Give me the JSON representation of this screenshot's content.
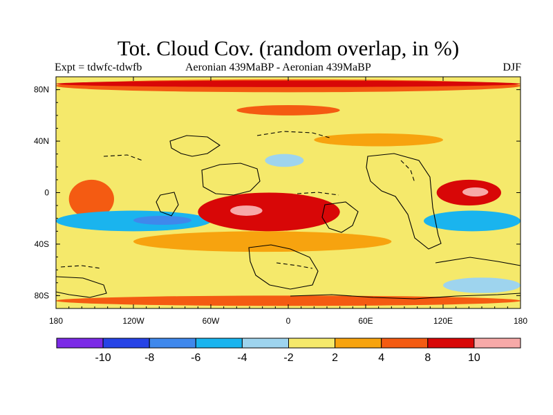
{
  "chart_data": {
    "type": "heatmap",
    "title": "Tot. Cloud Cov. (random overlap, in %)",
    "left_label": "Expt = tdwfc-tdwfb",
    "center_label": "Aeronian 439MaBP - Aeronian 439MaBP",
    "right_label": "DJF",
    "variable": "Total cloud cover difference (random overlap)",
    "units": "%",
    "season": "DJF",
    "xlim": [
      -180,
      180
    ],
    "ylim": [
      -90,
      90
    ],
    "x_ticks": [
      {
        "value": -180,
        "label": "180"
      },
      {
        "value": -120,
        "label": "120W"
      },
      {
        "value": -60,
        "label": "60W"
      },
      {
        "value": 0,
        "label": "0"
      },
      {
        "value": 60,
        "label": "60E"
      },
      {
        "value": 120,
        "label": "120E"
      },
      {
        "value": 180,
        "label": "180"
      }
    ],
    "y_ticks": [
      {
        "value": 80,
        "label": "80N"
      },
      {
        "value": 40,
        "label": "40N"
      },
      {
        "value": 0,
        "label": "0"
      },
      {
        "value": -40,
        "label": "40S"
      },
      {
        "value": -80,
        "label": "80S"
      }
    ],
    "contour_levels": [
      "-10",
      "-8",
      "-6",
      "-4",
      "-2",
      "2",
      "4",
      "8",
      "10"
    ],
    "colorbar_colors": [
      "#7b2ae6",
      "#2643e6",
      "#3f88ec",
      "#1ab4ee",
      "#9ed4ee",
      "#f5e96b",
      "#f7a30f",
      "#f45b12",
      "#d80707",
      "#f7a9a8"
    ],
    "background_class_color": "#f5e96b",
    "regions": [
      {
        "name": "northern high-latitude band",
        "lon": [
          -180,
          180
        ],
        "lat": [
          78,
          88
        ],
        "value": 6
      },
      {
        "name": "north polar band core",
        "lon": [
          -180,
          180
        ],
        "lat": [
          82,
          87
        ],
        "value": 9
      },
      {
        "name": "mid-Atlantic northern arc",
        "lon": [
          -40,
          40
        ],
        "lat": [
          60,
          68
        ],
        "value": 4
      },
      {
        "name": "eastern hemisphere 40N arc",
        "lon": [
          20,
          120
        ],
        "lat": [
          36,
          46
        ],
        "value": 3
      },
      {
        "name": "northern reduction patch",
        "lon": [
          -18,
          12
        ],
        "lat": [
          20,
          30
        ],
        "value": -4
      },
      {
        "name": "west Pacific tropical increase",
        "lon": [
          -170,
          -135
        ],
        "lat": [
          -20,
          10
        ],
        "value": 7
      },
      {
        "name": "eastern tropical max",
        "lon": [
          115,
          165
        ],
        "lat": [
          -10,
          10
        ],
        "value": 8
      },
      {
        "name": "eastern tropical core",
        "lon": [
          135,
          155
        ],
        "lat": [
          -3,
          4
        ],
        "value": 11
      },
      {
        "name": "eastern subtropical reduction",
        "lon": [
          105,
          180
        ],
        "lat": [
          -30,
          -14
        ],
        "value": -6
      },
      {
        "name": "south Pacific reduction",
        "lon": [
          -180,
          -60
        ],
        "lat": [
          -30,
          -14
        ],
        "value": -5
      },
      {
        "name": "south Pacific reduction core",
        "lon": [
          -120,
          -75
        ],
        "lat": [
          -25,
          -18
        ],
        "value": -7
      },
      {
        "name": "subtropical increase band",
        "lon": [
          -70,
          40
        ],
        "lat": [
          -30,
          0
        ],
        "value": 8
      },
      {
        "name": "subtropical increase core",
        "lon": [
          -45,
          -20
        ],
        "lat": [
          -18,
          -10
        ],
        "value": 11
      },
      {
        "name": "southern band increase",
        "lon": [
          -120,
          80
        ],
        "lat": [
          -46,
          -30
        ],
        "value": 3
      },
      {
        "name": "southern polar band increase",
        "lon": [
          -180,
          180
        ],
        "lat": [
          -88,
          -80
        ],
        "value": 4
      },
      {
        "name": "southern high-latitude reduction",
        "lon": [
          120,
          180
        ],
        "lat": [
          -78,
          -66
        ],
        "value": -3
      }
    ]
  },
  "colorbar_labels": [
    "-10",
    "-8",
    "-6",
    "-4",
    "-2",
    "2",
    "4",
    "8",
    "10"
  ]
}
